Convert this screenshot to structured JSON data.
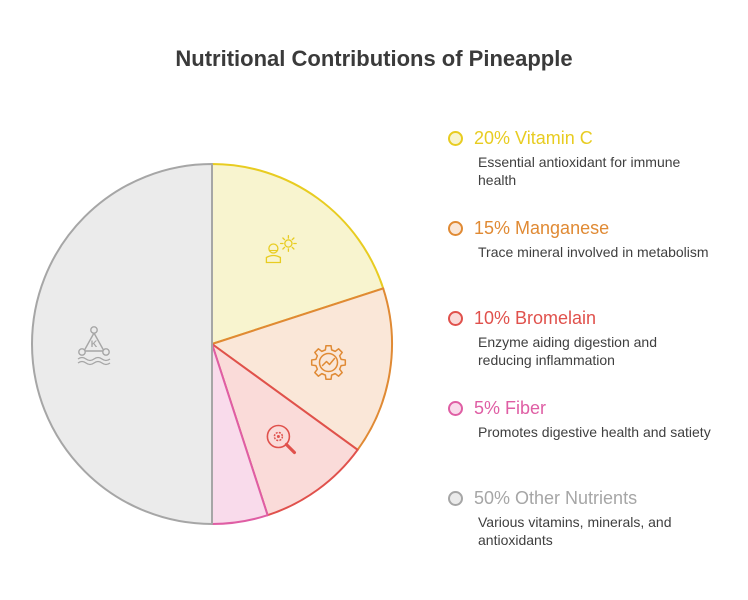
{
  "chart_data": {
    "type": "pie",
    "title": "Nutritional Contributions of Pineapple",
    "slices": [
      {
        "label": "20% Vitamin C",
        "value": 20,
        "description": "Essential antioxidant for immune health",
        "color": "#e8cc21",
        "fill": "#f8f4cf",
        "icon": "sun-person-icon"
      },
      {
        "label": "15% Manganese",
        "value": 15,
        "description": "Trace mineral involved in metabolism",
        "color": "#e08a34",
        "fill": "#fae7d8",
        "icon": "gear-chart-icon"
      },
      {
        "label": "10% Bromelain",
        "value": 10,
        "description": "Enzyme aiding digestion and reducing inflammation",
        "color": "#e0514c",
        "fill": "#fadbd9",
        "icon": "magnifier-gear-icon"
      },
      {
        "label": "5% Fiber",
        "value": 5,
        "description": "Promotes digestive health and satiety",
        "color": "#df5ea4",
        "fill": "#f9dbeb",
        "icon": ""
      },
      {
        "label": "50% Other Nutrients",
        "value": 50,
        "description": "Various vitamins, minerals, and antioxidants",
        "color": "#a6a6a6",
        "fill": "#ebebeb",
        "icon": "molecule-icon"
      }
    ]
  }
}
